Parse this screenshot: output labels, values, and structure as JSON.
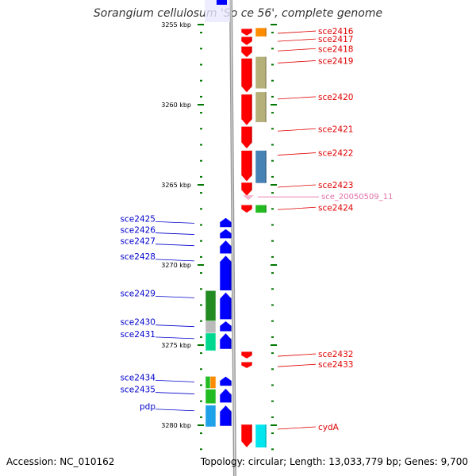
{
  "title": "Sorangium cellulosum 'So ce 56', complete genome",
  "accession_text": "Accession: NC_010162",
  "summary_text": "Topology: circular; Length: 13,033,779 bp; Genes: 9,700",
  "colors": {
    "forward_label": "#e00000",
    "reverse_label": "#0000cc",
    "pseudo_label": "#e36fa8",
    "forward_gene": "#ff0000",
    "reverse_gene": "#0000ff",
    "tick": "#007700",
    "backbone": "#999999"
  },
  "scale": {
    "labels": [
      {
        "kbp": 3255,
        "text": "3255 kbp"
      },
      {
        "kbp": 3260,
        "text": "3260 kbp"
      },
      {
        "kbp": 3265,
        "text": "3265 kbp"
      },
      {
        "kbp": 3270,
        "text": "3270 kbp"
      },
      {
        "kbp": 3275,
        "text": "3275 kbp"
      },
      {
        "kbp": 3280,
        "text": "3280 kbp"
      }
    ]
  },
  "forward_genes": [
    {
      "label": "sce2416",
      "start": 3255.25,
      "end": 3255.7
    },
    {
      "label": "sce2417",
      "start": 3255.75,
      "end": 3256.3
    },
    {
      "label": "sce2418",
      "start": 3256.35,
      "end": 3257.05
    },
    {
      "label": "sce2419",
      "start": 3257.1,
      "end": 3259.25
    },
    {
      "label": "sce2420",
      "start": 3259.35,
      "end": 3261.3
    },
    {
      "label": "sce2421",
      "start": 3261.35,
      "end": 3262.75
    },
    {
      "label": "sce2422",
      "start": 3262.85,
      "end": 3264.8
    },
    {
      "label": "sce2423",
      "start": 3264.85,
      "end": 3265.7
    },
    {
      "label": "sce2424",
      "start": 3266.25,
      "end": 3266.75
    },
    {
      "label": "sce2432",
      "start": 3275.4,
      "end": 3275.85
    },
    {
      "label": "sce2433",
      "start": 3276.05,
      "end": 3276.45
    },
    {
      "label": "cydA",
      "start": 3279.95,
      "end": 3281.4
    }
  ],
  "reverse_genes": [
    {
      "label": "sce2425",
      "start": 3267.05,
      "end": 3267.65
    },
    {
      "label": "sce2426",
      "start": 3267.75,
      "end": 3268.35
    },
    {
      "label": "sce2427",
      "start": 3268.45,
      "end": 3269.3
    },
    {
      "label": "sce2428",
      "start": 3269.4,
      "end": 3271.6
    },
    {
      "label": "sce2429",
      "start": 3271.7,
      "end": 3273.4
    },
    {
      "label": "sce2430",
      "start": 3273.5,
      "end": 3274.15
    },
    {
      "label": "sce2431",
      "start": 3274.25,
      "end": 3275.25
    },
    {
      "label": "sce2434",
      "start": 3276.95,
      "end": 3277.55
    },
    {
      "label": "sce2435",
      "start": 3277.7,
      "end": 3278.6
    },
    {
      "label": "pdp",
      "start": 3278.75,
      "end": 3280.05
    }
  ],
  "pseudo_features": [
    {
      "label": "sce_20050509_11",
      "position": 3265.85
    }
  ],
  "forward_domains": [
    {
      "color": "#ff8c00",
      "start": 3255.2,
      "end": 3255.75
    },
    {
      "color": "#b5b07a",
      "start": 3257.0,
      "end": 3259.0
    },
    {
      "color": "#b5b07a",
      "start": 3259.2,
      "end": 3261.1
    },
    {
      "color": "#4682b4",
      "start": 3262.85,
      "end": 3264.9
    },
    {
      "color": "#22bb22",
      "start": 3266.25,
      "end": 3266.75
    },
    {
      "color": "#00e5ee",
      "start": 3279.95,
      "end": 3281.4
    }
  ],
  "reverse_domains": [
    {
      "color": "#228b22",
      "start": 3271.6,
      "end": 3273.5
    },
    {
      "color": "#bbbbbb",
      "start": 3273.5,
      "end": 3274.25
    },
    {
      "color": "#00d890",
      "start": 3274.25,
      "end": 3275.35
    },
    {
      "color": "#22bb22",
      "start": 3276.95,
      "end": 3277.7
    },
    {
      "color": "#ff8c00",
      "start": 3276.95,
      "end": 3277.7,
      "narrow": true
    },
    {
      "color": "#22bb22",
      "start": 3277.75,
      "end": 3278.65
    },
    {
      "color": "#1ea1e8",
      "start": 3278.75,
      "end": 3280.1
    }
  ]
}
